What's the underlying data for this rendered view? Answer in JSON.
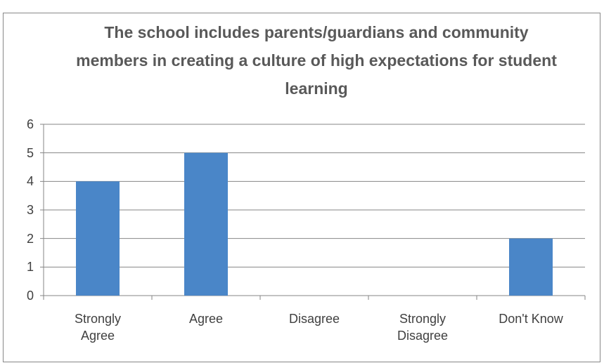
{
  "chart_data": {
    "type": "bar",
    "title": "The school includes parents/guardians and community members in creating a culture of high expectations for student learning",
    "categories": [
      "Strongly Agree",
      "Agree",
      "Disagree",
      "Strongly Disagree",
      "Don't Know"
    ],
    "values": [
      4,
      5,
      0,
      0,
      2
    ],
    "color": "#4a86c8",
    "ylim": [
      0,
      6
    ],
    "yticks": [
      0,
      1,
      2,
      3,
      4,
      5,
      6
    ],
    "grid": true
  }
}
